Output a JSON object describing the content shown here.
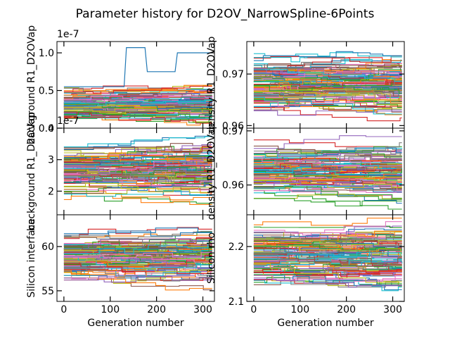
{
  "figure": {
    "title": "Parameter history for D2OV_NarrowSpline-6Points"
  },
  "chart_data": [
    {
      "type": "line",
      "ylabel": "background R1_D2OVap",
      "offset_text": "1e-7",
      "xlim": [
        -15,
        325
      ],
      "ylim": [
        0.0,
        1.15
      ],
      "xticks": [
        0,
        100,
        200,
        300
      ],
      "yticks": [
        0.0,
        0.5,
        1.0
      ],
      "ytick_labels": [
        "0.0",
        "0.5",
        "1.0"
      ],
      "xlabel": "",
      "series_count": 120,
      "value_range": [
        0.0,
        0.6
      ],
      "highlight": {
        "x": [
          0,
          130,
          135,
          175,
          180,
          240,
          245,
          320
        ],
        "y": [
          0.55,
          0.55,
          1.07,
          1.07,
          0.75,
          0.75,
          1.0,
          1.0
        ]
      }
    },
    {
      "type": "line",
      "ylabel": "density R1_D2OVap",
      "offset_text": "",
      "xlim": [
        -15,
        325
      ],
      "ylim": [
        0.9595,
        0.9763
      ],
      "xticks": [
        0,
        100,
        200,
        300
      ],
      "yticks": [
        0.96,
        0.97
      ],
      "ytick_labels": [
        "0.96",
        "0.97"
      ],
      "xlabel": "",
      "series_count": 120,
      "value_range": [
        0.9605,
        0.9755
      ]
    },
    {
      "type": "line",
      "ylabel": "background R1_D2OVap",
      "offset_text": "1e-7",
      "xlim": [
        -15,
        325
      ],
      "ylim": [
        1.25,
        4.0
      ],
      "xticks": [
        0,
        100,
        200,
        300
      ],
      "yticks": [
        2,
        3,
        4
      ],
      "ytick_labels": [
        "2",
        "3",
        "4"
      ],
      "xlabel": "",
      "series_count": 120,
      "value_range": [
        1.4,
        3.9
      ]
    },
    {
      "type": "line",
      "ylabel": "density R1_D2OVap",
      "offset_text": "",
      "xlim": [
        -15,
        325
      ],
      "ylim": [
        0.9545,
        0.9705
      ],
      "xticks": [
        0,
        100,
        200,
        300
      ],
      "yticks": [
        0.96,
        0.97
      ],
      "ytick_labels": [
        "0.96",
        "0.97"
      ],
      "xlabel": "",
      "series_count": 120,
      "value_range": [
        0.9555,
        0.9695
      ]
    },
    {
      "type": "line",
      "ylabel": "Silicon interface",
      "offset_text": "",
      "xlim": [
        -15,
        325
      ],
      "ylim": [
        53.8,
        63.6
      ],
      "xticks": [
        0,
        100,
        200,
        300
      ],
      "yticks": [
        55,
        60
      ],
      "ytick_labels": [
        "55",
        "60"
      ],
      "xlabel": "Generation number",
      "xtick_labels": [
        "0",
        "100",
        "200",
        "300"
      ],
      "series_count": 120,
      "value_range": [
        54.5,
        63.0
      ]
    },
    {
      "type": "line",
      "ylabel": "Silicon rho",
      "offset_text": "",
      "xlim": [
        -15,
        325
      ],
      "ylim": [
        2.1,
        2.258
      ],
      "xticks": [
        0,
        100,
        200,
        300
      ],
      "yticks": [
        2.1,
        2.2
      ],
      "ytick_labels": [
        "2.1",
        "2.2"
      ],
      "xlabel": "Generation number",
      "xtick_labels": [
        "0",
        "100",
        "200",
        "300"
      ],
      "series_count": 120,
      "value_range": [
        2.105,
        2.255
      ]
    }
  ],
  "colors": [
    "#1f77b4",
    "#ff7f0e",
    "#2ca02c",
    "#d62728",
    "#9467bd",
    "#8c564b",
    "#e377c2",
    "#7f7f7f",
    "#bcbd22",
    "#17becf"
  ]
}
